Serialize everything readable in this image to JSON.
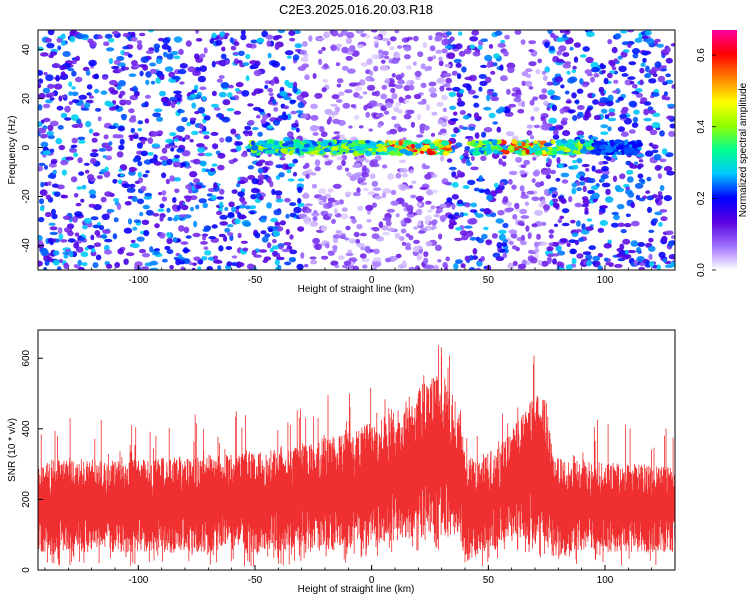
{
  "chart_data": [
    {
      "type": "heatmap",
      "title": "C2E3.2025.016.20.03.R18",
      "xlabel": "Height of straight line (km)",
      "ylabel": "Frequency (Hz)",
      "xlim": [
        -143,
        130
      ],
      "ylim": [
        -50,
        48
      ],
      "xticks": [
        -100,
        -50,
        0,
        50,
        100
      ],
      "yticks": [
        -40,
        -20,
        0,
        20,
        40
      ],
      "colorbar": {
        "label": "Normalized spectral amplitude",
        "range": [
          0,
          0.67
        ],
        "ticks": [
          0.0,
          0.2,
          0.4,
          0.6
        ],
        "colors": [
          "#ffffff",
          "#a070ff",
          "#5a00e0",
          "#0000ff",
          "#00c8ff",
          "#00ff90",
          "#90ff00",
          "#ffff00",
          "#ff8000",
          "#ff0000",
          "#ff00a0"
        ]
      },
      "features": {
        "signal_band_frequency_hz": 0,
        "signal_band_x_range_km": [
          [
            -52,
            33
          ],
          [
            42,
            115
          ]
        ],
        "strongest_x_range_km": [
          [
            5,
            33
          ],
          [
            55,
            75
          ]
        ],
        "pale_regions_km": [
          [
            -30,
            33
          ],
          [
            58,
            75
          ]
        ],
        "gap_km": [
          33,
          42
        ],
        "peak_normalized_amplitude": 0.65
      }
    },
    {
      "type": "area",
      "xlabel": "Height of straight line (km)",
      "ylabel": "SNR (10 * v/v)",
      "xlim": [
        -143,
        130
      ],
      "ylim": [
        0,
        680
      ],
      "xticks": [
        -100,
        -50,
        0,
        50,
        100
      ],
      "yticks": [
        0,
        200,
        400,
        600
      ],
      "color": "#f03030",
      "envelope": {
        "x": [
          -143,
          -130,
          -110,
          -90,
          -70,
          -50,
          -30,
          -10,
          0,
          10,
          20,
          30,
          38,
          40,
          45,
          55,
          60,
          65,
          70,
          75,
          78,
          85,
          100,
          115,
          130
        ],
        "lower": [
          50,
          50,
          50,
          50,
          50,
          50,
          50,
          60,
          70,
          80,
          90,
          90,
          90,
          20,
          40,
          60,
          80,
          90,
          80,
          70,
          30,
          50,
          50,
          50,
          50
        ],
        "upper": [
          300,
          320,
          310,
          320,
          330,
          330,
          360,
          390,
          420,
          450,
          520,
          560,
          460,
          320,
          320,
          350,
          400,
          450,
          500,
          480,
          320,
          310,
          310,
          300,
          290
        ]
      },
      "max_snr": 680
    }
  ]
}
